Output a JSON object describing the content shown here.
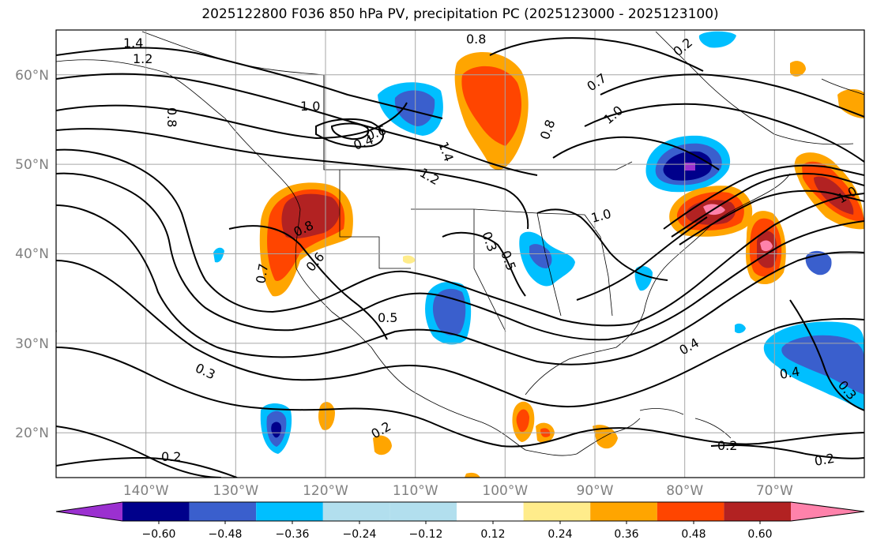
{
  "title": "2025122800 F036 850 hPa PV, precipitation PC (2025123000 - 2025123100)",
  "map_extent": {
    "lon": [
      -150,
      -60
    ],
    "lat": [
      15,
      65
    ]
  },
  "lat_labels": [
    "20°N",
    "30°N",
    "40°N",
    "50°N",
    "60°N"
  ],
  "lon_labels": [
    "140°W",
    "130°W",
    "120°W",
    "110°W",
    "100°W",
    "90°W",
    "80°W",
    "70°W"
  ],
  "colorbar": {
    "tick_labels": [
      "−0.60",
      "−0.48",
      "−0.36",
      "−0.24",
      "−0.12",
      "0.12",
      "0.24",
      "0.36",
      "0.48",
      "0.60"
    ],
    "colors": [
      "#9b30d0",
      "#00008b",
      "#3a5fcd",
      "#00bfff",
      "#b2dfee",
      "#ffffff",
      "#ffec8b",
      "#ffa500",
      "#ff4500",
      "#b22222",
      "#ff82ab"
    ]
  },
  "contour_labels": [
    "1.4",
    "1.2",
    "0.8",
    "1.0",
    "0.4",
    "0.6",
    "1.4",
    "1.2",
    "0.8",
    "0.7",
    "1.0",
    "0.8",
    "1.0",
    "0.7",
    "0.8",
    "0.6",
    "0.3",
    "0.5",
    "0.5",
    "0.3",
    "0.2",
    "0.3",
    "0.2",
    "0.4",
    "0.4",
    "0.3",
    "0.2",
    "0.2",
    "0.2",
    "1.0"
  ],
  "precip_anomalies": [
    {
      "name": "blue-gulf-of-alaska",
      "lon": -113,
      "lat": 56.5
    },
    {
      "name": "orange-western-canada",
      "lon": -101,
      "lat": 57
    },
    {
      "name": "red-pacific-northwest",
      "lon": -121,
      "lat": 43
    },
    {
      "name": "blue-ontario",
      "lon": -79,
      "lat": 49.5
    },
    {
      "name": "red-great-lakes",
      "lon": -77,
      "lat": 44
    },
    {
      "name": "red-new-england",
      "lon": -71.5,
      "lat": 40.5
    },
    {
      "name": "red-maritimes",
      "lon": -64,
      "lat": 46
    },
    {
      "name": "blue-southwest",
      "lon": -107,
      "lat": 34
    },
    {
      "name": "blue-mississippi",
      "lon": -94,
      "lat": 39
    },
    {
      "name": "blue-atlantic",
      "lon": -64,
      "lat": 28.5
    },
    {
      "name": "blue-eastern-pacific",
      "lon": -125,
      "lat": 21
    },
    {
      "name": "orange-mexico",
      "lon": -96,
      "lat": 20
    }
  ]
}
